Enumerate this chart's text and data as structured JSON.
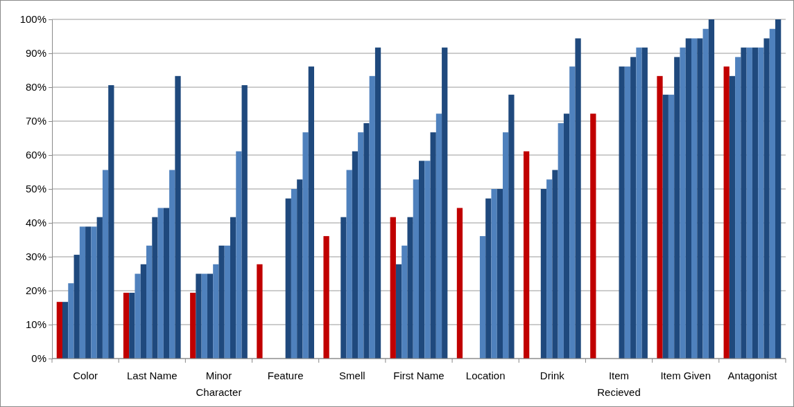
{
  "chart_data": {
    "type": "bar",
    "categories": [
      "Color",
      "Last Name",
      "Minor Character",
      "Feature",
      "Smell",
      "First Name",
      "Location",
      "Drink",
      "Item Recieved",
      "Item Given",
      "Antagonist"
    ],
    "series": [
      {
        "color": "#c00000",
        "values": [
          16.7,
          19.4,
          19.4,
          27.8,
          36.1,
          41.7,
          44.4,
          61.1,
          72.2,
          83.3,
          86.1
        ]
      },
      {
        "color": "#1f497d",
        "values": [
          16.7,
          19.4,
          25,
          null,
          null,
          27.8,
          null,
          null,
          null,
          77.8,
          83.3
        ]
      },
      {
        "color": "#4f81bd",
        "values": [
          22.2,
          25,
          25,
          null,
          null,
          33.3,
          null,
          null,
          null,
          77.8,
          88.9
        ]
      },
      {
        "color": "#1f497d",
        "values": [
          30.6,
          27.8,
          25,
          null,
          41.7,
          41.7,
          null,
          50,
          null,
          88.9,
          91.7
        ]
      },
      {
        "color": "#4f81bd",
        "values": [
          38.9,
          33.3,
          27.8,
          null,
          55.6,
          52.8,
          36.1,
          52.8,
          null,
          91.7,
          91.7
        ]
      },
      {
        "color": "#1f497d",
        "values": [
          38.9,
          41.7,
          33.3,
          47.2,
          61.1,
          58.3,
          47.2,
          55.6,
          86.1,
          94.4,
          91.7
        ]
      },
      {
        "color": "#4f81bd",
        "values": [
          38.9,
          44.4,
          33.3,
          50,
          66.7,
          58.3,
          50,
          69.4,
          86.1,
          94.4,
          91.7
        ]
      },
      {
        "color": "#1f497d",
        "values": [
          41.7,
          44.4,
          41.7,
          52.8,
          69.4,
          66.7,
          50,
          72.2,
          88.9,
          94.4,
          94.4
        ]
      },
      {
        "color": "#4f81bd",
        "values": [
          55.6,
          55.6,
          61.1,
          66.7,
          83.3,
          72.2,
          66.7,
          86.1,
          91.7,
          97.2,
          97.2
        ]
      },
      {
        "color": "#1f497d",
        "values": [
          80.6,
          83.3,
          80.6,
          86.1,
          91.7,
          91.7,
          77.8,
          94.4,
          91.7,
          100,
          100
        ]
      }
    ],
    "ylim": [
      0,
      100
    ],
    "yticks": [
      {
        "value": 0,
        "label": "0%"
      },
      {
        "value": 10,
        "label": "10%"
      },
      {
        "value": 20,
        "label": "20%"
      },
      {
        "value": 30,
        "label": "30%"
      },
      {
        "value": 40,
        "label": "40%"
      },
      {
        "value": 50,
        "label": "50%"
      },
      {
        "value": 60,
        "label": "60%"
      },
      {
        "value": 70,
        "label": "70%"
      },
      {
        "value": 80,
        "label": "80%"
      },
      {
        "value": 90,
        "label": "90%"
      },
      {
        "value": 100,
        "label": "100%"
      }
    ],
    "grid": "y"
  }
}
